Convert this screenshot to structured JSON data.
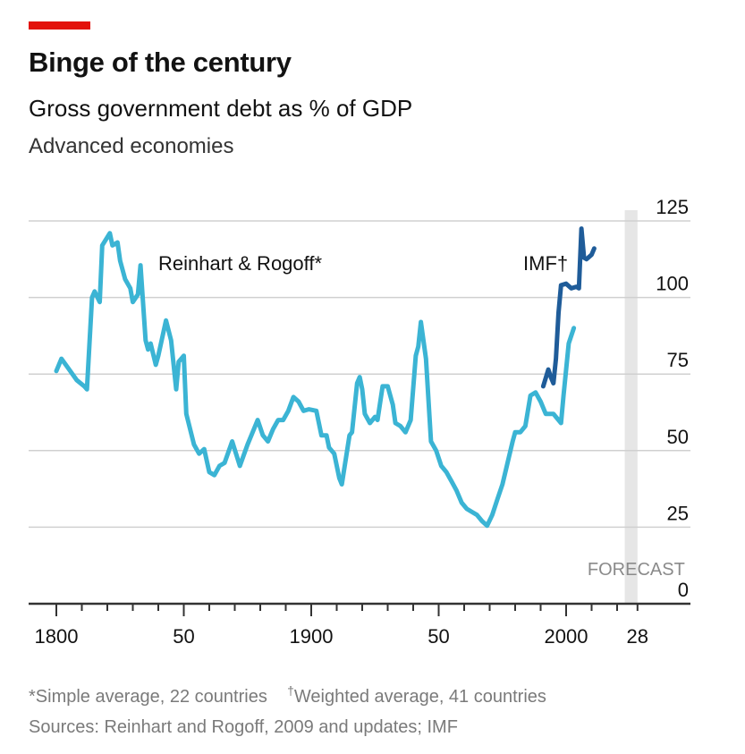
{
  "header": {
    "accent_color": "#e3120b",
    "title": "Binge of the century",
    "subtitle": "Gross government debt as % of GDP",
    "subsubtitle": "Advanced economies"
  },
  "chart_data": {
    "type": "line",
    "title": "Binge of the century",
    "subtitle": "Gross government debt as % of GDP",
    "xlabel": "",
    "ylabel": "% of GDP",
    "xlim": [
      1800,
      2028
    ],
    "ylim": [
      0,
      125
    ],
    "y_ticks": [
      0,
      25,
      50,
      75,
      100,
      125
    ],
    "y_tick_labels": [
      "0",
      "25",
      "50",
      "75",
      "100",
      "125"
    ],
    "y_axis_side": "right",
    "x_major_ticks": [
      1800,
      1850,
      1900,
      1950,
      2000,
      2028
    ],
    "x_tick_labels": [
      "1800",
      "50",
      "1900",
      "50",
      "2000",
      "28"
    ],
    "x_minor_tick_step": 10,
    "grid": true,
    "forecast": {
      "label": "FORECAST",
      "from": 2023,
      "to": 2028,
      "color": "#e6e6e6"
    },
    "series": [
      {
        "name": "Reinhart & Rogoff*",
        "label": "Reinhart & Rogoff*",
        "color": "#3bb4d4",
        "points": [
          [
            1800,
            76
          ],
          [
            1802,
            80
          ],
          [
            1805,
            76.5
          ],
          [
            1808,
            73
          ],
          [
            1811,
            71
          ],
          [
            1812,
            70
          ],
          [
            1814,
            100
          ],
          [
            1815,
            102
          ],
          [
            1817,
            98.5
          ],
          [
            1818,
            117
          ],
          [
            1821,
            121
          ],
          [
            1822,
            117
          ],
          [
            1824,
            118
          ],
          [
            1825,
            112
          ],
          [
            1827,
            106
          ],
          [
            1829,
            103
          ],
          [
            1830,
            98.5
          ],
          [
            1832,
            101
          ],
          [
            1833,
            110.5
          ],
          [
            1835,
            86
          ],
          [
            1836,
            83
          ],
          [
            1837,
            85
          ],
          [
            1839,
            78
          ],
          [
            1840,
            81
          ],
          [
            1843,
            92.5
          ],
          [
            1845,
            86
          ],
          [
            1847,
            70
          ],
          [
            1848,
            79
          ],
          [
            1850,
            81
          ],
          [
            1851,
            62
          ],
          [
            1854,
            52
          ],
          [
            1856,
            49
          ],
          [
            1858,
            50.5
          ],
          [
            1860,
            43
          ],
          [
            1862,
            42
          ],
          [
            1864,
            45
          ],
          [
            1866,
            46
          ],
          [
            1869,
            53
          ],
          [
            1872,
            45
          ],
          [
            1875,
            52
          ],
          [
            1878,
            58
          ],
          [
            1879,
            60
          ],
          [
            1881,
            55
          ],
          [
            1883,
            53
          ],
          [
            1885,
            57
          ],
          [
            1887,
            60
          ],
          [
            1889,
            60
          ],
          [
            1891,
            63
          ],
          [
            1893,
            67.5
          ],
          [
            1895,
            66
          ],
          [
            1897,
            63
          ],
          [
            1899,
            63.5
          ],
          [
            1902,
            63
          ],
          [
            1904,
            55
          ],
          [
            1906,
            55
          ],
          [
            1907,
            51
          ],
          [
            1909,
            49
          ],
          [
            1911,
            41
          ],
          [
            1912,
            39
          ],
          [
            1915,
            55
          ],
          [
            1916,
            56
          ],
          [
            1918,
            72
          ],
          [
            1919,
            74
          ],
          [
            1920,
            70
          ],
          [
            1921,
            62
          ],
          [
            1923,
            59
          ],
          [
            1925,
            61
          ],
          [
            1926,
            60
          ],
          [
            1928,
            71
          ],
          [
            1930,
            71
          ],
          [
            1932,
            65
          ],
          [
            1933,
            59
          ],
          [
            1935,
            58
          ],
          [
            1937,
            56
          ],
          [
            1939,
            60
          ],
          [
            1941,
            81
          ],
          [
            1942,
            84
          ],
          [
            1943,
            92
          ],
          [
            1945,
            80
          ],
          [
            1947,
            53
          ],
          [
            1949,
            50
          ],
          [
            1951,
            45
          ],
          [
            1953,
            43
          ],
          [
            1955,
            40
          ],
          [
            1957,
            37
          ],
          [
            1959,
            33
          ],
          [
            1961,
            31
          ],
          [
            1963,
            30
          ],
          [
            1965,
            29
          ],
          [
            1967,
            27
          ],
          [
            1969,
            25.5
          ],
          [
            1971,
            29
          ],
          [
            1973,
            34
          ],
          [
            1975,
            39
          ],
          [
            1977,
            46
          ],
          [
            1979,
            53
          ],
          [
            1980,
            56
          ],
          [
            1982,
            56
          ],
          [
            1984,
            58
          ],
          [
            1986,
            68
          ],
          [
            1988,
            69
          ],
          [
            1990,
            66
          ],
          [
            1992,
            62
          ],
          [
            1995,
            62
          ],
          [
            1996,
            61
          ],
          [
            1998,
            59
          ],
          [
            1999,
            68
          ],
          [
            2001,
            85
          ],
          [
            2003,
            90
          ]
        ]
      },
      {
        "name": "IMF†",
        "label": "IMF†",
        "color": "#1f5c99",
        "points": [
          [
            1991,
            71
          ],
          [
            1993,
            76.5
          ],
          [
            1994,
            74
          ],
          [
            1995,
            72
          ],
          [
            1996,
            80
          ],
          [
            1997,
            95
          ],
          [
            1998,
            104
          ],
          [
            2000,
            104.5
          ],
          [
            2002,
            103
          ],
          [
            2004,
            103.5
          ],
          [
            2005,
            103
          ],
          [
            2006,
            122.5
          ],
          [
            2007,
            113
          ],
          [
            2008,
            112.5
          ],
          [
            2010,
            114
          ],
          [
            2011,
            116
          ]
        ]
      }
    ]
  },
  "footnotes": {
    "note1": "*Simple average, 22 countries",
    "dagger": "†",
    "note2": "Weighted average, 41 countries",
    "sources": "Sources: Reinhart and Rogoff, 2009 and updates; IMF"
  }
}
